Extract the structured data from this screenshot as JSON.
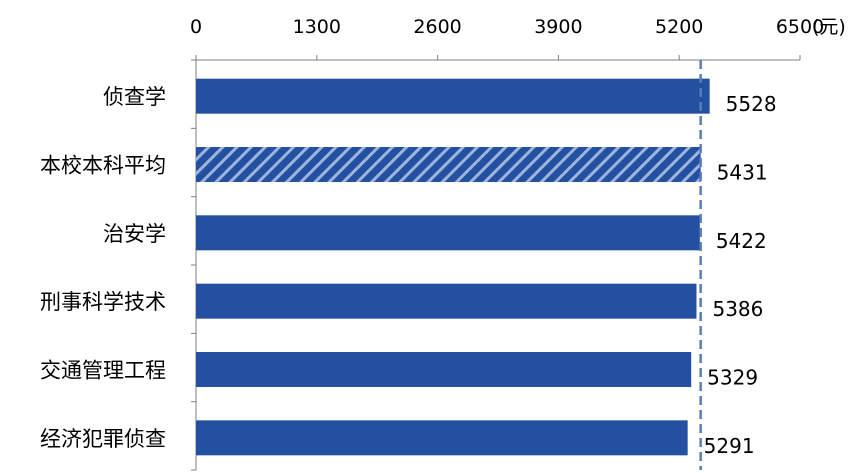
{
  "chart_data": {
    "type": "bar",
    "orientation": "horizontal",
    "axis_unit": "(元)",
    "xlim": [
      0,
      6500
    ],
    "x_ticks": [
      0,
      1300,
      2600,
      3900,
      5200,
      6500
    ],
    "x_tick_labels": [
      "0",
      "1300",
      "2600",
      "3900",
      "5200",
      "6500"
    ],
    "categories": [
      "侦查学",
      "本校本科平均",
      "治安学",
      "刑事科学技术",
      "交通管理工程",
      "经济犯罪侦查"
    ],
    "values": [
      5528,
      5431,
      5422,
      5386,
      5329,
      5291
    ],
    "value_labels": [
      "5528",
      "5431",
      "5422",
      "5386",
      "5329",
      "5291"
    ],
    "highlight_category": "本校本科平均",
    "reference_line_value": 5431,
    "grid": false,
    "legend": "none",
    "colors": {
      "bar": "#2350A0",
      "hatch_light": "#9DB4DC",
      "reference_line": "#5A7DB4",
      "axis": "#7F7F7F"
    }
  }
}
